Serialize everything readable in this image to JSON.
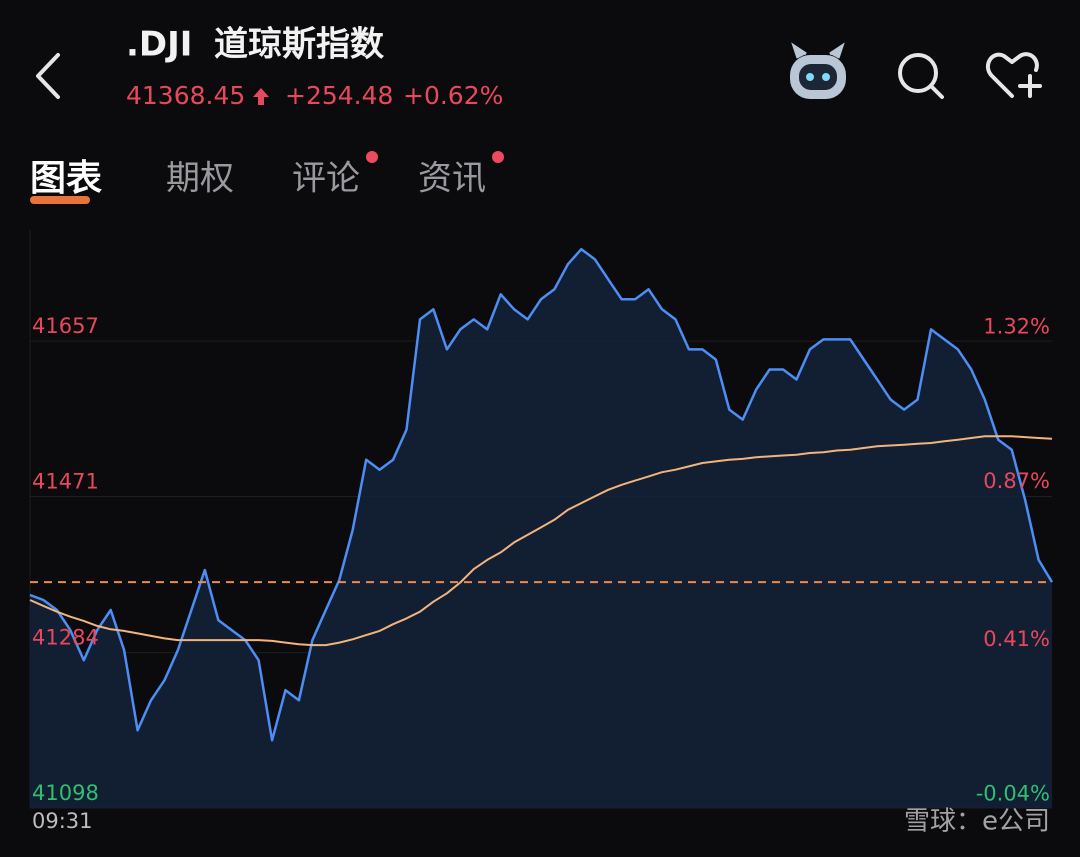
{
  "header": {
    "symbol": ".DJI",
    "name": "道琼斯指数",
    "price": "41368.45",
    "change": "+254.48",
    "change_percent": "+0.62%"
  },
  "tabs": [
    {
      "label": "图表",
      "active": true,
      "badge": false
    },
    {
      "label": "期权",
      "active": false,
      "badge": false
    },
    {
      "label": "评论",
      "active": false,
      "badge": true
    },
    {
      "label": "资讯",
      "active": false,
      "badge": true
    }
  ],
  "watermark": "雪球：e公司",
  "chart_data": {
    "type": "line",
    "categories": [
      "09:31",
      null,
      null,
      null,
      null,
      null,
      null,
      null,
      null,
      null,
      null,
      null,
      null,
      null,
      null,
      null,
      null,
      null,
      null,
      null,
      null,
      null,
      null,
      null,
      null,
      null,
      null,
      null,
      null,
      null,
      null,
      null,
      null,
      null,
      null,
      null,
      null,
      null,
      null,
      null,
      null,
      null,
      null,
      null,
      null,
      null,
      null,
      null,
      null,
      null,
      null,
      null,
      null,
      null,
      null,
      null,
      null,
      null,
      null,
      null,
      null,
      null,
      null,
      null,
      null,
      null,
      null,
      null,
      null,
      null,
      null,
      null,
      null,
      null,
      null,
      null,
      null
    ],
    "series": [
      {
        "name": "price",
        "color": "#4d8ef5",
        "fill": "#14223a",
        "values": [
          41353,
          41347,
          41335,
          41311,
          41275,
          41311,
          41335,
          41287,
          41191,
          41227,
          41251,
          41287,
          41335,
          41383,
          41323,
          41311,
          41299,
          41275,
          41179,
          41239,
          41227,
          41299,
          41335,
          41371,
          41431,
          41515,
          41503,
          41515,
          41551,
          41683,
          41695,
          41647,
          41671,
          41683,
          41671,
          41713,
          41695,
          41683,
          41707,
          41719,
          41749,
          41767,
          41755,
          41731,
          41707,
          41707,
          41719,
          41695,
          41683,
          41647,
          41647,
          41635,
          41575,
          41563,
          41599,
          41623,
          41623,
          41611,
          41647,
          41659,
          41659,
          41659,
          41635,
          41611,
          41587,
          41575,
          41587,
          41671,
          41659,
          41647,
          41623,
          41587,
          41539,
          41527,
          41467,
          41395,
          41368.45
        ]
      },
      {
        "name": "average",
        "color": "#f2b47c",
        "values": [
          41347,
          41340,
          41333,
          41327,
          41322,
          41316,
          41312,
          41310,
          41307,
          41304,
          41301,
          41299,
          41299,
          41299,
          41299,
          41299,
          41299,
          41299,
          41298,
          41296,
          41294,
          41293,
          41293,
          41296,
          41300,
          41305,
          41310,
          41318,
          41325,
          41333,
          41345,
          41355,
          41368,
          41384,
          41395,
          41404,
          41416,
          41425,
          41434,
          41443,
          41455,
          41463,
          41471,
          41479,
          41485,
          41490,
          41495,
          41500,
          41503,
          41507,
          41511,
          41513,
          41515,
          41516,
          41518,
          41519,
          41520,
          41521,
          41523,
          41524,
          41526,
          41527,
          41529,
          41531,
          41532,
          41533,
          41534,
          41535,
          41537,
          41539,
          41541,
          41543,
          41543,
          41543,
          41542,
          41541,
          41540
        ]
      }
    ],
    "ylim": [
      41098,
      41790
    ],
    "yticks": [
      41098,
      41284,
      41471,
      41657
    ],
    "ytick_colors": [
      "#2fbf71",
      "#e8485c",
      "#e8485c",
      "#e8485c"
    ],
    "y2lim": [
      -0.0388,
      1.6443
    ],
    "y2ticks": [
      {
        "value": -0.04,
        "label": "-0.04%"
      },
      {
        "value": 0.41,
        "label": "0.41%"
      },
      {
        "value": 0.87,
        "label": "0.87%"
      },
      {
        "value": 1.32,
        "label": "1.32%"
      }
    ],
    "grid": true,
    "last_price_line": {
      "color": "#f08a4b",
      "dashed": true
    }
  }
}
